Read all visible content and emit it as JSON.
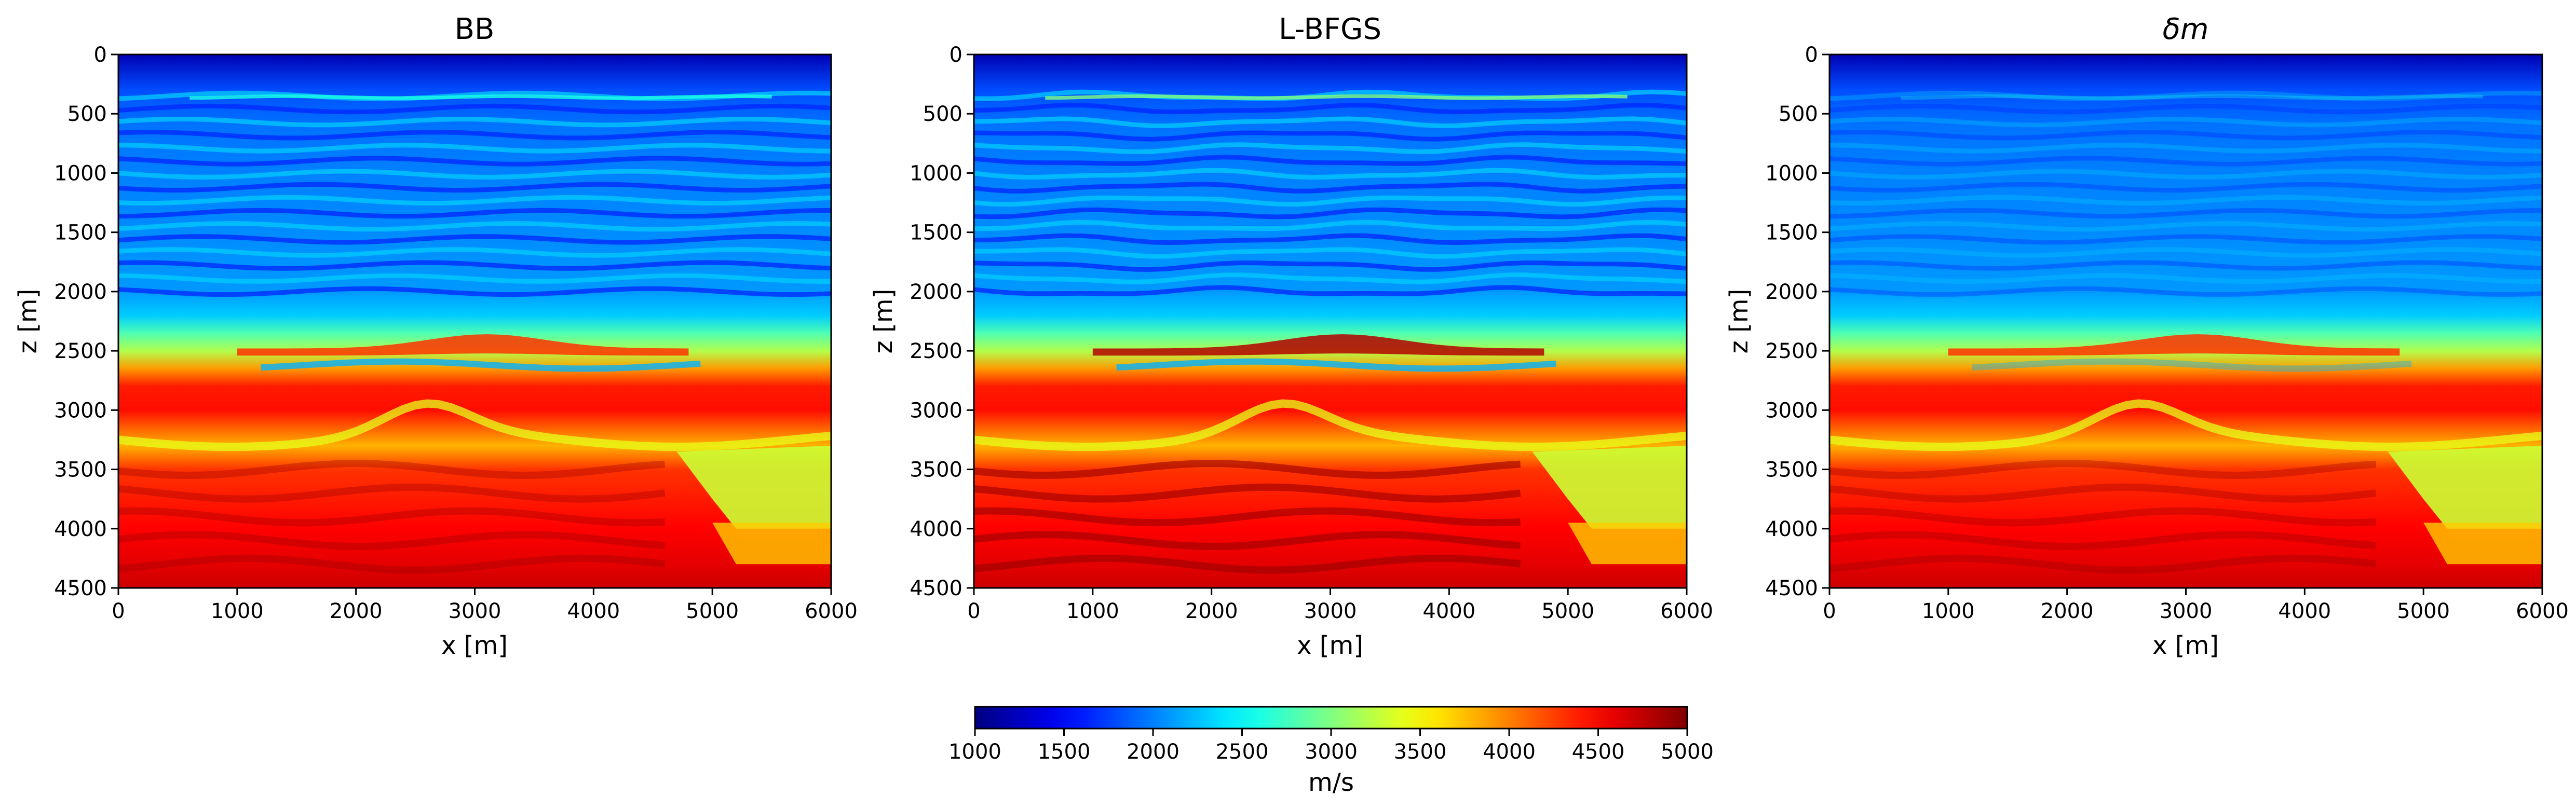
{
  "chart_data": {
    "type": "heatmap",
    "panels": [
      {
        "title": "BB",
        "title_italic": false,
        "xlabel": "x [m]",
        "ylabel": "z [m]",
        "xlim": [
          0,
          6000
        ],
        "ylim": [
          4500,
          0
        ],
        "xticks": [
          0,
          1000,
          2000,
          3000,
          4000,
          5000,
          6000
        ],
        "yticks": [
          0,
          500,
          1000,
          1500,
          2000,
          2500,
          3000,
          3500,
          4000,
          4500
        ]
      },
      {
        "title": "L-BFGS",
        "title_italic": false,
        "xlabel": "x [m]",
        "ylabel": "z [m]",
        "xlim": [
          0,
          6000
        ],
        "ylim": [
          4500,
          0
        ],
        "xticks": [
          0,
          1000,
          2000,
          3000,
          4000,
          5000,
          6000
        ],
        "yticks": [
          0,
          500,
          1000,
          1500,
          2000,
          2500,
          3000,
          3500,
          4000,
          4500
        ]
      },
      {
        "title": "δm",
        "title_italic": true,
        "xlabel": "x [m]",
        "ylabel": "z [m]",
        "xlim": [
          0,
          6000
        ],
        "ylim": [
          4500,
          0
        ],
        "xticks": [
          0,
          1000,
          2000,
          3000,
          4000,
          5000,
          6000
        ],
        "yticks": [
          0,
          500,
          1000,
          1500,
          2000,
          2500,
          3000,
          3500,
          4000,
          4500
        ]
      }
    ],
    "colorbar": {
      "label": "m/s",
      "range": [
        1000,
        5000
      ],
      "ticks": [
        1000,
        1500,
        2000,
        2500,
        3000,
        3500,
        4000,
        4500,
        5000
      ],
      "colormap": "jet"
    },
    "velocity_profile": {
      "depth_m": [
        0,
        300,
        600,
        1000,
        1500,
        2000,
        2200,
        2350,
        2500,
        2650,
        2800,
        3000,
        3300,
        3500,
        4000,
        4300,
        4500
      ],
      "velocity_ms": [
        1200,
        1800,
        1950,
        2000,
        2050,
        2100,
        2300,
        2800,
        3200,
        3900,
        4400,
        4450,
        3800,
        4300,
        4500,
        4600,
        4700
      ]
    }
  }
}
